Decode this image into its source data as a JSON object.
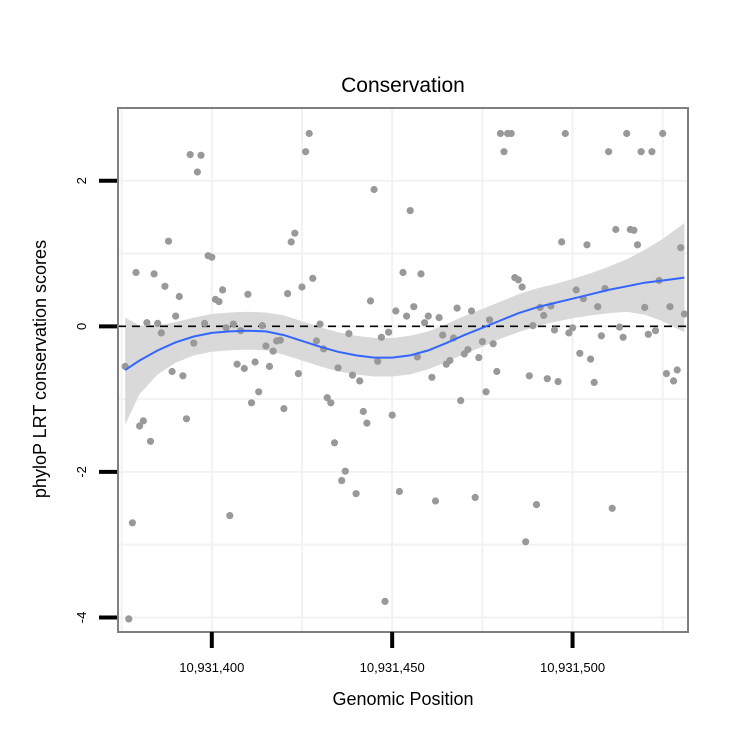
{
  "chart_data": {
    "type": "scatter",
    "title": "Conservation",
    "xlabel": "Genomic Position",
    "ylabel": "phyloP LRT conservation scores",
    "xlim": [
      10931374,
      10931532
    ],
    "ylim": [
      -4.2,
      3.0
    ],
    "x_ticks": [
      {
        "value": 10931400,
        "label": "10,931,400"
      },
      {
        "value": 10931450,
        "label": "10,931,450"
      },
      {
        "value": 10931500,
        "label": "10,931,500"
      }
    ],
    "y_ticks": [
      {
        "value": -4,
        "label": "-4"
      },
      {
        "value": -2,
        "label": "-2"
      },
      {
        "value": 0,
        "label": "0"
      },
      {
        "value": 2,
        "label": "2"
      }
    ],
    "reference_line": {
      "y": 0,
      "style": "dashed",
      "color": "#000000"
    },
    "point_color": "#999999",
    "smooth_color": "#3366ff",
    "ribbon_color": "#d9d9d9",
    "grid": true,
    "points": [
      {
        "x": 10931376,
        "y": -0.55
      },
      {
        "x": 10931377,
        "y": -4.02
      },
      {
        "x": 10931378,
        "y": -2.7
      },
      {
        "x": 10931379,
        "y": 0.74
      },
      {
        "x": 10931380,
        "y": -1.37
      },
      {
        "x": 10931381,
        "y": -1.3
      },
      {
        "x": 10931382,
        "y": 0.05
      },
      {
        "x": 10931383,
        "y": -1.58
      },
      {
        "x": 10931384,
        "y": 0.72
      },
      {
        "x": 10931385,
        "y": 0.04
      },
      {
        "x": 10931386,
        "y": -0.09
      },
      {
        "x": 10931387,
        "y": 0.55
      },
      {
        "x": 10931388,
        "y": 1.17
      },
      {
        "x": 10931389,
        "y": -0.62
      },
      {
        "x": 10931390,
        "y": 0.14
      },
      {
        "x": 10931391,
        "y": 0.41
      },
      {
        "x": 10931392,
        "y": -0.68
      },
      {
        "x": 10931393,
        "y": -1.27
      },
      {
        "x": 10931394,
        "y": 2.36
      },
      {
        "x": 10931395,
        "y": -0.23
      },
      {
        "x": 10931396,
        "y": 2.12
      },
      {
        "x": 10931397,
        "y": 2.35
      },
      {
        "x": 10931398,
        "y": 0.04
      },
      {
        "x": 10931399,
        "y": 0.97
      },
      {
        "x": 10931400,
        "y": 0.95
      },
      {
        "x": 10931401,
        "y": 0.37
      },
      {
        "x": 10931402,
        "y": 0.34
      },
      {
        "x": 10931403,
        "y": 0.5
      },
      {
        "x": 10931404,
        "y": -0.02
      },
      {
        "x": 10931405,
        "y": -2.6
      },
      {
        "x": 10931406,
        "y": 0.03
      },
      {
        "x": 10931407,
        "y": -0.52
      },
      {
        "x": 10931408,
        "y": -0.06
      },
      {
        "x": 10931409,
        "y": -0.58
      },
      {
        "x": 10931410,
        "y": 0.44
      },
      {
        "x": 10931411,
        "y": -1.05
      },
      {
        "x": 10931412,
        "y": -0.49
      },
      {
        "x": 10931413,
        "y": -0.9
      },
      {
        "x": 10931414,
        "y": 0.01
      },
      {
        "x": 10931415,
        "y": -0.27
      },
      {
        "x": 10931416,
        "y": -0.55
      },
      {
        "x": 10931417,
        "y": -0.34
      },
      {
        "x": 10931418,
        "y": -0.2
      },
      {
        "x": 10931419,
        "y": -0.19
      },
      {
        "x": 10931420,
        "y": -1.13
      },
      {
        "x": 10931421,
        "y": 0.45
      },
      {
        "x": 10931422,
        "y": 1.16
      },
      {
        "x": 10931423,
        "y": 1.28
      },
      {
        "x": 10931424,
        "y": -0.65
      },
      {
        "x": 10931425,
        "y": 0.54
      },
      {
        "x": 10931426,
        "y": 2.4
      },
      {
        "x": 10931427,
        "y": 2.65
      },
      {
        "x": 10931428,
        "y": 0.66
      },
      {
        "x": 10931429,
        "y": -0.2
      },
      {
        "x": 10931430,
        "y": 0.03
      },
      {
        "x": 10931431,
        "y": -0.31
      },
      {
        "x": 10931432,
        "y": -0.98
      },
      {
        "x": 10931433,
        "y": -1.05
      },
      {
        "x": 10931434,
        "y": -1.6
      },
      {
        "x": 10931435,
        "y": -0.57
      },
      {
        "x": 10931436,
        "y": -2.12
      },
      {
        "x": 10931437,
        "y": -1.99
      },
      {
        "x": 10931438,
        "y": -0.1
      },
      {
        "x": 10931439,
        "y": -0.67
      },
      {
        "x": 10931440,
        "y": -2.3
      },
      {
        "x": 10931441,
        "y": -0.75
      },
      {
        "x": 10931442,
        "y": -1.17
      },
      {
        "x": 10931443,
        "y": -1.33
      },
      {
        "x": 10931444,
        "y": 0.35
      },
      {
        "x": 10931445,
        "y": 1.88
      },
      {
        "x": 10931446,
        "y": -0.48
      },
      {
        "x": 10931447,
        "y": -0.15
      },
      {
        "x": 10931448,
        "y": -3.78
      },
      {
        "x": 10931449,
        "y": -0.08
      },
      {
        "x": 10931450,
        "y": -1.22
      },
      {
        "x": 10931451,
        "y": 0.21
      },
      {
        "x": 10931452,
        "y": -2.27
      },
      {
        "x": 10931453,
        "y": 0.74
      },
      {
        "x": 10931454,
        "y": 0.14
      },
      {
        "x": 10931455,
        "y": 1.59
      },
      {
        "x": 10931456,
        "y": 0.27
      },
      {
        "x": 10931457,
        "y": -0.42
      },
      {
        "x": 10931458,
        "y": 0.72
      },
      {
        "x": 10931459,
        "y": 0.05
      },
      {
        "x": 10931460,
        "y": 0.14
      },
      {
        "x": 10931461,
        "y": -0.7
      },
      {
        "x": 10931462,
        "y": -2.4
      },
      {
        "x": 10931463,
        "y": 0.12
      },
      {
        "x": 10931464,
        "y": -0.12
      },
      {
        "x": 10931465,
        "y": -0.52
      },
      {
        "x": 10931466,
        "y": -0.47
      },
      {
        "x": 10931467,
        "y": -0.16
      },
      {
        "x": 10931468,
        "y": 0.25
      },
      {
        "x": 10931469,
        "y": -1.02
      },
      {
        "x": 10931470,
        "y": -0.38
      },
      {
        "x": 10931471,
        "y": -0.32
      },
      {
        "x": 10931472,
        "y": 0.21
      },
      {
        "x": 10931473,
        "y": -2.35
      },
      {
        "x": 10931474,
        "y": -0.43
      },
      {
        "x": 10931475,
        "y": -0.21
      },
      {
        "x": 10931476,
        "y": -0.9
      },
      {
        "x": 10931477,
        "y": 0.09
      },
      {
        "x": 10931478,
        "y": -0.24
      },
      {
        "x": 10931479,
        "y": -0.62
      },
      {
        "x": 10931480,
        "y": 2.65
      },
      {
        "x": 10931481,
        "y": 2.4
      },
      {
        "x": 10931482,
        "y": 2.65
      },
      {
        "x": 10931483,
        "y": 2.65
      },
      {
        "x": 10931484,
        "y": 0.67
      },
      {
        "x": 10931485,
        "y": 0.64
      },
      {
        "x": 10931486,
        "y": 0.54
      },
      {
        "x": 10931487,
        "y": -2.96
      },
      {
        "x": 10931488,
        "y": -0.68
      },
      {
        "x": 10931489,
        "y": 0.01
      },
      {
        "x": 10931490,
        "y": -2.45
      },
      {
        "x": 10931491,
        "y": 0.26
      },
      {
        "x": 10931492,
        "y": 0.15
      },
      {
        "x": 10931493,
        "y": -0.72
      },
      {
        "x": 10931494,
        "y": 0.28
      },
      {
        "x": 10931495,
        "y": -0.05
      },
      {
        "x": 10931496,
        "y": -0.76
      },
      {
        "x": 10931497,
        "y": 1.16
      },
      {
        "x": 10931498,
        "y": 2.65
      },
      {
        "x": 10931499,
        "y": -0.09
      },
      {
        "x": 10931500,
        "y": -0.02
      },
      {
        "x": 10931501,
        "y": 0.5
      },
      {
        "x": 10931502,
        "y": -0.37
      },
      {
        "x": 10931503,
        "y": 0.38
      },
      {
        "x": 10931504,
        "y": 1.12
      },
      {
        "x": 10931505,
        "y": -0.45
      },
      {
        "x": 10931506,
        "y": -0.77
      },
      {
        "x": 10931507,
        "y": 0.27
      },
      {
        "x": 10931508,
        "y": -0.13
      },
      {
        "x": 10931509,
        "y": 0.52
      },
      {
        "x": 10931510,
        "y": 2.4
      },
      {
        "x": 10931511,
        "y": -2.5
      },
      {
        "x": 10931512,
        "y": 1.33
      },
      {
        "x": 10931513,
        "y": -0.01
      },
      {
        "x": 10931514,
        "y": -0.15
      },
      {
        "x": 10931515,
        "y": 2.65
      },
      {
        "x": 10931516,
        "y": 1.33
      },
      {
        "x": 10931517,
        "y": 1.32
      },
      {
        "x": 10931518,
        "y": 1.12
      },
      {
        "x": 10931519,
        "y": 2.4
      },
      {
        "x": 10931520,
        "y": 0.26
      },
      {
        "x": 10931521,
        "y": -0.11
      },
      {
        "x": 10931522,
        "y": 2.4
      },
      {
        "x": 10931523,
        "y": -0.06
      },
      {
        "x": 10931524,
        "y": 0.63
      },
      {
        "x": 10931525,
        "y": 2.65
      },
      {
        "x": 10931526,
        "y": -0.65
      },
      {
        "x": 10931527,
        "y": 0.27
      },
      {
        "x": 10931528,
        "y": -0.75
      },
      {
        "x": 10931529,
        "y": -0.6
      },
      {
        "x": 10931530,
        "y": 1.08
      },
      {
        "x": 10931531,
        "y": 0.17
      }
    ],
    "smooth": {
      "method": "loess",
      "x": [
        10931376,
        10931380,
        10931385,
        10931390,
        10931395,
        10931400,
        10931405,
        10931410,
        10931415,
        10931420,
        10931425,
        10931430,
        10931435,
        10931440,
        10931445,
        10931450,
        10931455,
        10931460,
        10931465,
        10931470,
        10931475,
        10931480,
        10931485,
        10931490,
        10931495,
        10931500,
        10931505,
        10931510,
        10931515,
        10931520,
        10931525,
        10931531
      ],
      "y": [
        -0.6,
        -0.47,
        -0.33,
        -0.22,
        -0.14,
        -0.09,
        -0.07,
        -0.06,
        -0.07,
        -0.12,
        -0.2,
        -0.28,
        -0.35,
        -0.4,
        -0.43,
        -0.43,
        -0.4,
        -0.33,
        -0.23,
        -0.12,
        -0.02,
        0.08,
        0.18,
        0.26,
        0.32,
        0.38,
        0.44,
        0.5,
        0.55,
        0.6,
        0.63,
        0.67
      ],
      "lower": [
        -1.35,
        -0.93,
        -0.66,
        -0.5,
        -0.4,
        -0.35,
        -0.33,
        -0.32,
        -0.33,
        -0.39,
        -0.47,
        -0.55,
        -0.62,
        -0.66,
        -0.69,
        -0.69,
        -0.66,
        -0.59,
        -0.49,
        -0.38,
        -0.28,
        -0.17,
        -0.08,
        0.0,
        0.06,
        0.11,
        0.15,
        0.18,
        0.2,
        0.16,
        0.07,
        -0.08
      ],
      "upper": [
        0.12,
        0.01,
        0.01,
        0.06,
        0.12,
        0.17,
        0.19,
        0.2,
        0.19,
        0.15,
        0.07,
        -0.01,
        -0.08,
        -0.13,
        -0.16,
        -0.16,
        -0.13,
        -0.07,
        0.03,
        0.14,
        0.24,
        0.34,
        0.44,
        0.52,
        0.58,
        0.65,
        0.73,
        0.82,
        0.92,
        1.05,
        1.2,
        1.42
      ]
    }
  }
}
